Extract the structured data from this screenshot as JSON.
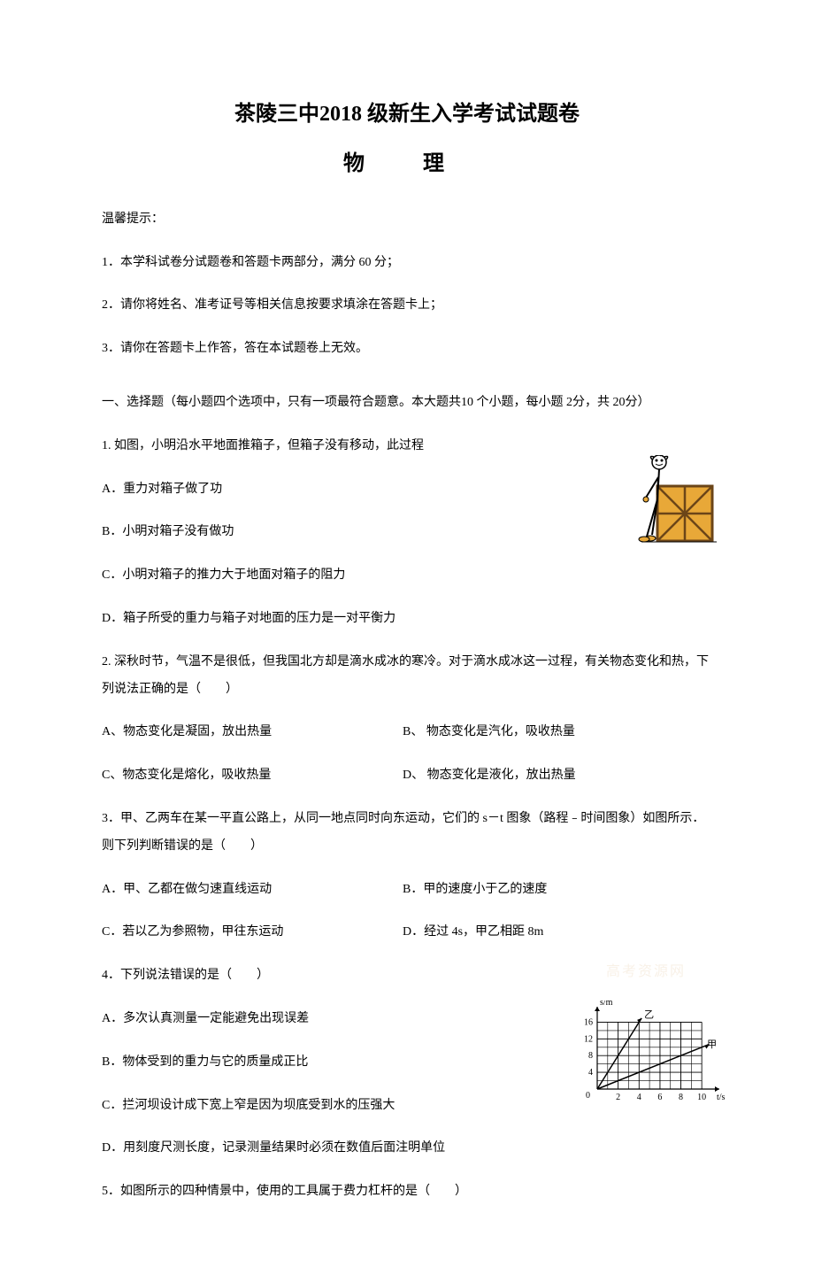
{
  "title_main": "茶陵三中2018 级新生入学考试试题卷",
  "title_sub": "物 理",
  "tips": {
    "header": "温馨提示：",
    "items": [
      "1．本学科试卷分试题卷和答题卡两部分，满分 60 分；",
      "2．请你将姓名、准考证号等相关信息按要求填涂在答题卡上；",
      "3．请你在答题卡上作答，答在本试题卷上无效。"
    ]
  },
  "section_header": "一、选择题（每小题四个选项中，只有一项最符合题意。本大题共10 个小题，每小题 2分，共 20分）",
  "q1": {
    "stem": "1. 如图，小明沿水平地面推箱子，但箱子没有移动，此过程",
    "options": [
      "A．重力对箱子做了功",
      "B．小明对箱子没有做功",
      "C．小明对箱子的推力大于地面对箱子的阻力",
      "D．箱子所受的重力与箱子对地面的压力是一对平衡力"
    ],
    "image_colors": {
      "box_fill": "#e8a838",
      "box_border": "#6b4518",
      "figure_color": "#000000",
      "figure_head": "#e8a838"
    }
  },
  "q2": {
    "stem": "2. 深秋时节，气温不是很低，但我国北方却是滴水成冰的寒冷。对于滴水成冰这一过程，有关物态变化和热，下列说法正确的是（　　）",
    "options": {
      "a": "A、物态变化是凝固，放出热量",
      "b": "B、 物态变化是汽化，吸收热量",
      "c": "C、物态变化是熔化，吸收热量",
      "d": "D、 物态变化是液化，放出热量"
    }
  },
  "q3": {
    "stem": "3．甲、乙两车在某一平直公路上，从同一地点同时向东运动，它们的 s－t 图象（路程﹣时间图象）如图所示．则下列判断错误的是（　　）",
    "options": {
      "a": "A．甲、乙都在做匀速直线运动",
      "b": "B．甲的速度小于乙的速度",
      "c": "C．若以乙为参照物，甲往东运动",
      "d": "D．经过 4s，甲乙相距 8m"
    },
    "graph": {
      "type": "line",
      "xlabel": "t/s",
      "ylabel": "s/m",
      "xlim": [
        0,
        11
      ],
      "ylim": [
        0,
        18
      ],
      "xticks": [
        2,
        4,
        6,
        8,
        10
      ],
      "yticks": [
        4,
        8,
        12,
        16
      ],
      "grid_color": "#000000",
      "background_color": "#ffffff",
      "line_color": "#000000",
      "line_width": 1.5,
      "series": [
        {
          "name": "乙",
          "points": [
            [
              0,
              0
            ],
            [
              4,
              16
            ]
          ],
          "label_pos": [
            4.5,
            17
          ]
        },
        {
          "name": "甲",
          "points": [
            [
              0,
              0
            ],
            [
              10,
              10
            ]
          ],
          "label_pos": [
            10.5,
            10
          ]
        }
      ]
    }
  },
  "q4": {
    "stem": "4．下列说法错误的是（　　）",
    "options": [
      "A．多次认真测量一定能避免出现误差",
      "B．物体受到的重力与它的质量成正比",
      "C．拦河坝设计成下宽上窄是因为坝底受到水的压强大",
      "D．用刻度尺测长度，记录测量结果时必须在数值后面注明单位"
    ]
  },
  "q5": {
    "stem": "5．如图所示的四种情景中，使用的工具属于费力杠杆的是（　　）"
  },
  "watermark": "高考资源网"
}
